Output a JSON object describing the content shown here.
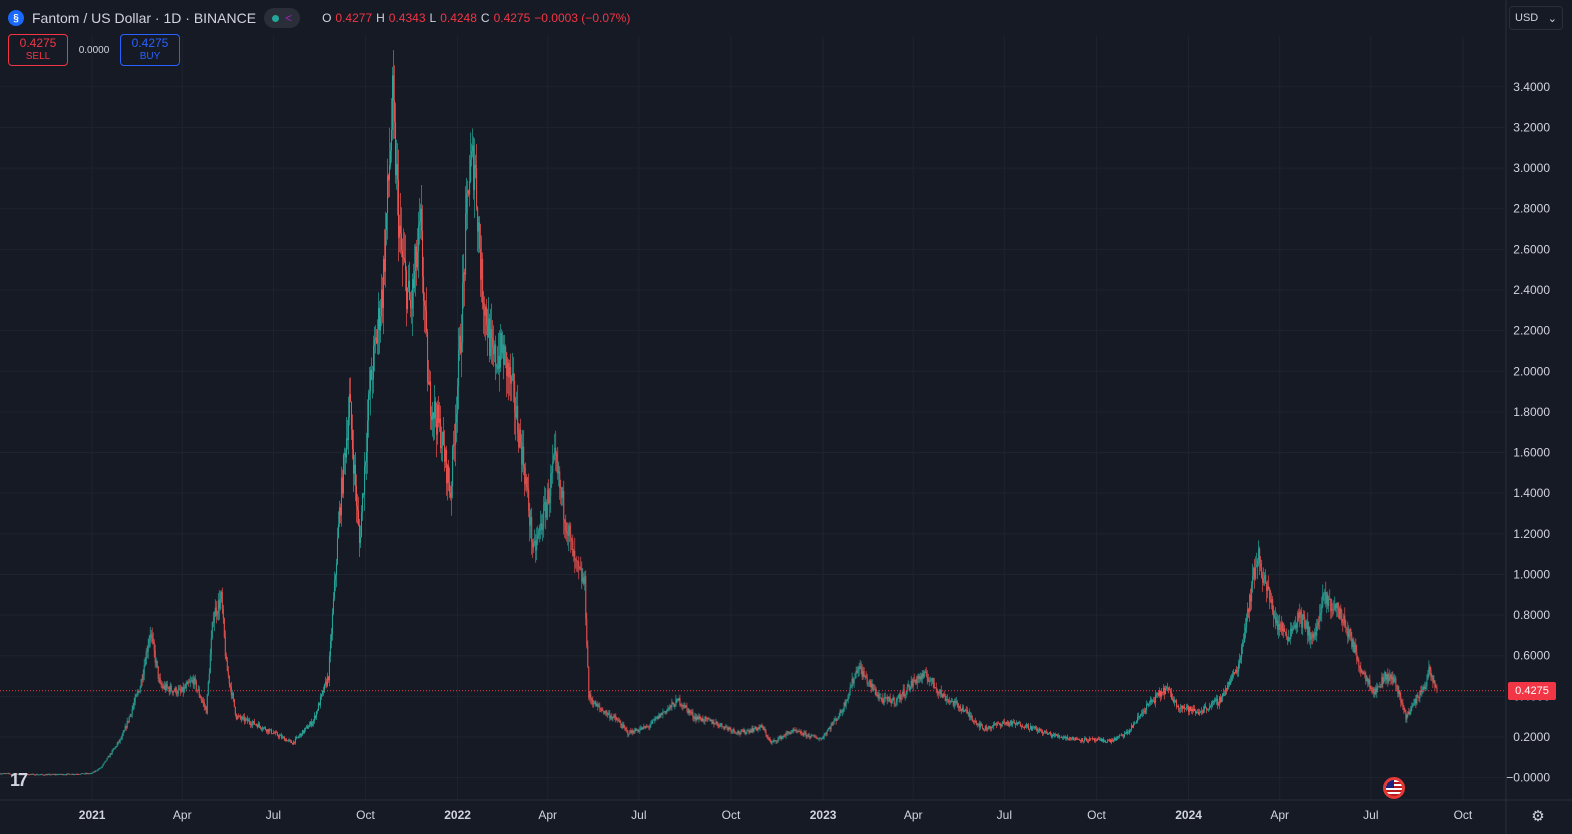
{
  "header": {
    "symbol_title": "Fantom / US Dollar · 1D · BINANCE",
    "coin_icon": "fantom-icon",
    "ohlc": {
      "o_label": "O",
      "o": "0.4277",
      "h_label": "H",
      "h": "0.4343",
      "l_label": "L",
      "l": "0.4248",
      "c_label": "C",
      "c": "0.4275",
      "change": "−0.0003 (−0.07%)"
    }
  },
  "trade": {
    "sell_price": "0.4275",
    "sell_label": "SELL",
    "spread": "0.0000",
    "buy_price": "0.4275",
    "buy_label": "BUY"
  },
  "currency": "USD",
  "last_price_tag": "0.4275",
  "colors": {
    "up": "#26a69a",
    "down": "#ef5350",
    "background": "#161a25",
    "grid": "#1f2330",
    "text": "#d1d4dc",
    "price_line": "#f23645"
  },
  "chart_data": {
    "type": "candlestick",
    "title": "Fantom / US Dollar · 1D · BINANCE",
    "x_axis_labels": [
      "2021",
      "Apr",
      "Jul",
      "Oct",
      "2022",
      "Apr",
      "Jul",
      "Oct",
      "2023",
      "Apr",
      "Jul",
      "Oct",
      "2024",
      "Apr",
      "Jul",
      "Oct"
    ],
    "y_axis_labels": [
      "3.4000",
      "3.2000",
      "3.0000",
      "2.8000",
      "2.6000",
      "2.4000",
      "2.2000",
      "2.0000",
      "1.8000",
      "1.6000",
      "1.4000",
      "1.2000",
      "1.0000",
      "0.8000",
      "0.6000",
      "0.4000",
      "0.2000",
      "−0.0000"
    ],
    "ylim": [
      -0.11,
      3.65
    ],
    "xlim": [
      "2020-10-01",
      "2024-11-12"
    ],
    "last_price": 0.4275,
    "grid": true,
    "price_path": [
      [
        "2020-10-01",
        0.02
      ],
      [
        "2020-11-15",
        0.014
      ],
      [
        "2020-12-31",
        0.02
      ],
      [
        "2021-01-10",
        0.05
      ],
      [
        "2021-01-31",
        0.2
      ],
      [
        "2021-02-18",
        0.45
      ],
      [
        "2021-02-28",
        0.72
      ],
      [
        "2021-03-10",
        0.45
      ],
      [
        "2021-03-31",
        0.42
      ],
      [
        "2021-04-12",
        0.48
      ],
      [
        "2021-04-25",
        0.33
      ],
      [
        "2021-05-02",
        0.8
      ],
      [
        "2021-05-10",
        0.88
      ],
      [
        "2021-05-15",
        0.55
      ],
      [
        "2021-05-25",
        0.3
      ],
      [
        "2021-06-15",
        0.26
      ],
      [
        "2021-07-01",
        0.22
      ],
      [
        "2021-07-20",
        0.17
      ],
      [
        "2021-08-10",
        0.28
      ],
      [
        "2021-08-25",
        0.5
      ],
      [
        "2021-09-05",
        1.3
      ],
      [
        "2021-09-15",
        1.85
      ],
      [
        "2021-09-25",
        1.15
      ],
      [
        "2021-10-05",
        1.9
      ],
      [
        "2021-10-18",
        2.4
      ],
      [
        "2021-10-28",
        3.3
      ],
      [
        "2021-11-05",
        2.6
      ],
      [
        "2021-11-15",
        2.3
      ],
      [
        "2021-11-25",
        2.7
      ],
      [
        "2021-12-03",
        1.9
      ],
      [
        "2021-12-15",
        1.7
      ],
      [
        "2021-12-25",
        1.4
      ],
      [
        "2022-01-05",
        2.25
      ],
      [
        "2022-01-12",
        2.95
      ],
      [
        "2022-01-18",
        3.05
      ],
      [
        "2022-01-25",
        2.45
      ],
      [
        "2022-02-05",
        2.05
      ],
      [
        "2022-02-15",
        2.1
      ],
      [
        "2022-02-25",
        1.9
      ],
      [
        "2022-03-08",
        1.55
      ],
      [
        "2022-03-18",
        1.1
      ],
      [
        "2022-03-31",
        1.35
      ],
      [
        "2022-04-08",
        1.55
      ],
      [
        "2022-04-18",
        1.3
      ],
      [
        "2022-04-28",
        1.05
      ],
      [
        "2022-05-08",
        0.95
      ],
      [
        "2022-05-12",
        0.4
      ],
      [
        "2022-05-20",
        0.35
      ],
      [
        "2022-06-10",
        0.28
      ],
      [
        "2022-06-20",
        0.22
      ],
      [
        "2022-07-10",
        0.25
      ],
      [
        "2022-07-25",
        0.32
      ],
      [
        "2022-08-10",
        0.38
      ],
      [
        "2022-08-25",
        0.3
      ],
      [
        "2022-09-15",
        0.27
      ],
      [
        "2022-10-10",
        0.22
      ],
      [
        "2022-11-01",
        0.25
      ],
      [
        "2022-11-10",
        0.17
      ],
      [
        "2022-12-01",
        0.23
      ],
      [
        "2022-12-30",
        0.19
      ],
      [
        "2023-01-20",
        0.33
      ],
      [
        "2023-02-05",
        0.55
      ],
      [
        "2023-02-15",
        0.47
      ],
      [
        "2023-03-01",
        0.38
      ],
      [
        "2023-03-15",
        0.38
      ],
      [
        "2023-04-05",
        0.49
      ],
      [
        "2023-04-15",
        0.5
      ],
      [
        "2023-05-01",
        0.4
      ],
      [
        "2023-05-20",
        0.34
      ],
      [
        "2023-06-10",
        0.24
      ],
      [
        "2023-06-30",
        0.27
      ],
      [
        "2023-07-20",
        0.26
      ],
      [
        "2023-08-17",
        0.21
      ],
      [
        "2023-09-10",
        0.19
      ],
      [
        "2023-10-15",
        0.18
      ],
      [
        "2023-11-01",
        0.22
      ],
      [
        "2023-11-20",
        0.35
      ],
      [
        "2023-12-10",
        0.44
      ],
      [
        "2023-12-20",
        0.36
      ],
      [
        "2024-01-10",
        0.32
      ],
      [
        "2024-02-01",
        0.38
      ],
      [
        "2024-02-20",
        0.55
      ],
      [
        "2024-03-01",
        0.85
      ],
      [
        "2024-03-10",
        1.1
      ],
      [
        "2024-03-18",
        0.95
      ],
      [
        "2024-03-30",
        0.75
      ],
      [
        "2024-04-10",
        0.7
      ],
      [
        "2024-04-20",
        0.8
      ],
      [
        "2024-05-05",
        0.68
      ],
      [
        "2024-05-15",
        0.88
      ],
      [
        "2024-05-30",
        0.82
      ],
      [
        "2024-06-10",
        0.7
      ],
      [
        "2024-06-20",
        0.55
      ],
      [
        "2024-07-05",
        0.42
      ],
      [
        "2024-07-15",
        0.5
      ],
      [
        "2024-07-25",
        0.48
      ],
      [
        "2024-08-05",
        0.3
      ],
      [
        "2024-08-15",
        0.38
      ],
      [
        "2024-08-25",
        0.47
      ],
      [
        "2024-08-28",
        0.52
      ],
      [
        "2024-09-05",
        0.43
      ]
    ]
  }
}
